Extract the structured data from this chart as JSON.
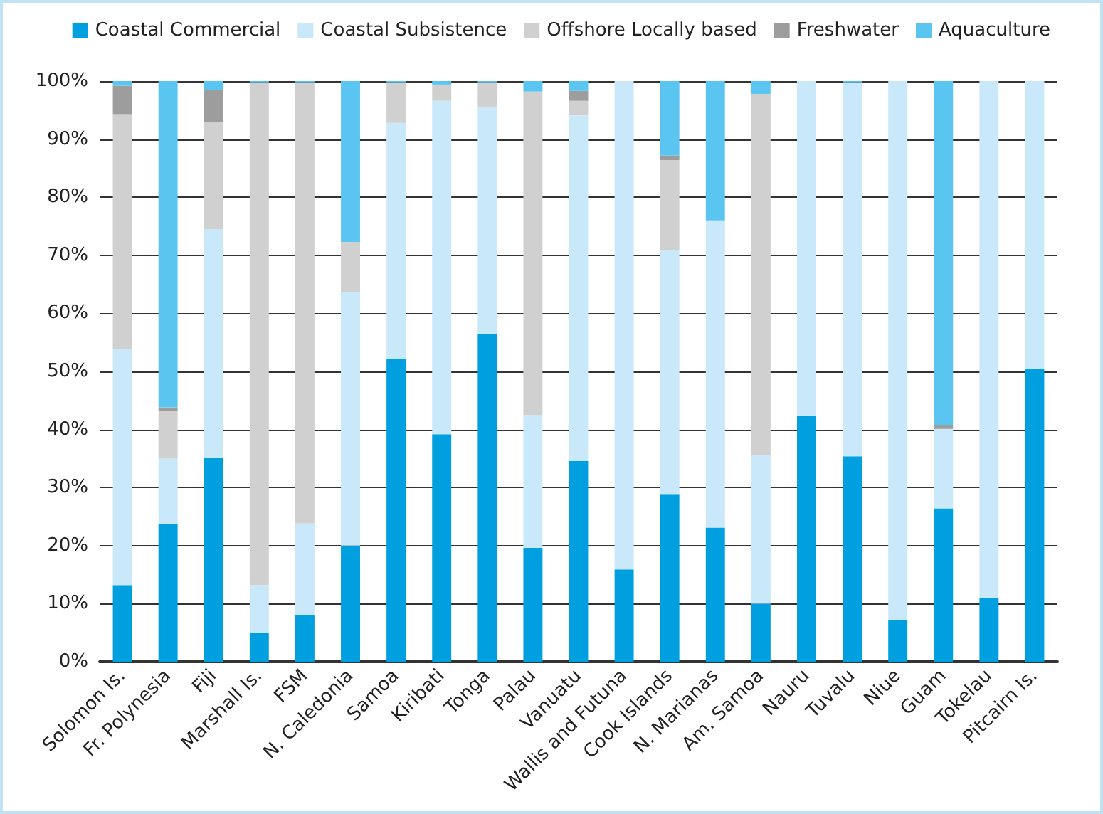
{
  "chart_data": {
    "type": "bar",
    "stacked": true,
    "categories": [
      "Solomon Is.",
      "Fr. Polynesia",
      "Fiji",
      "Marshall Is.",
      "FSM",
      "N. Caledonia",
      "Samoa",
      "Kiribati",
      "Tonga",
      "Palau",
      "Vanuatu",
      "Wallis and Futuna",
      "Cook Islands",
      "N. Marianas",
      "Am. Samoa",
      "Nauru",
      "Tuvalu",
      "Niue",
      "Guam",
      "Tokelau",
      "Pitcairn Is."
    ],
    "series": [
      {
        "name": "Coastal Commercial",
        "color": "#009fe0",
        "values": [
          13.2,
          23.7,
          35.2,
          5,
          8,
          20,
          52.1,
          39.2,
          56.4,
          19.6,
          34.6,
          15.9,
          28.9,
          23.1,
          10,
          42.4,
          35.4,
          7.1,
          26.4,
          11,
          50.5
        ]
      },
      {
        "name": "Coastal Subsistence",
        "color": "#c9e8f9",
        "values": [
          40.6,
          11.3,
          39.3,
          8.2,
          15.8,
          43.6,
          40.7,
          57.4,
          39.2,
          22.9,
          59.5,
          84.1,
          42,
          52.9,
          25.6,
          57.6,
          64.4,
          92.9,
          13.7,
          89,
          49.5
        ]
      },
      {
        "name": "Offshore Locally based",
        "color": "#d0d0d0",
        "values": [
          40.5,
          8.2,
          18.5,
          86.6,
          76,
          8.7,
          7,
          2.8,
          4.2,
          55.7,
          2.5,
          0,
          15.5,
          0,
          62.2,
          0,
          0,
          0,
          0,
          0,
          0
        ]
      },
      {
        "name": "Freshwater",
        "color": "#9d9d9d",
        "values": [
          4.9,
          0.6,
          5.5,
          0,
          0,
          0,
          0,
          0,
          0,
          0,
          1.7,
          0,
          0.8,
          0,
          0,
          0,
          0,
          0,
          0.7,
          0,
          0
        ]
      },
      {
        "name": "Aquaculture",
        "color": "#5bc5f2",
        "values": [
          0.8,
          56.2,
          1.5,
          0.2,
          0.2,
          27.7,
          0.2,
          0.6,
          0.2,
          1.8,
          1.7,
          0,
          12.8,
          24,
          2.2,
          0,
          0.2,
          0,
          59.2,
          0,
          0
        ]
      }
    ],
    "ylim": [
      0,
      100
    ],
    "yticks": [
      {
        "value": 0,
        "label": "0%"
      },
      {
        "value": 10,
        "label": "10%"
      },
      {
        "value": 20,
        "label": "20%"
      },
      {
        "value": 30,
        "label": "30%"
      },
      {
        "value": 40,
        "label": "40%"
      },
      {
        "value": 50,
        "label": "50%"
      },
      {
        "value": 60,
        "label": "60%"
      },
      {
        "value": 70,
        "label": "70%"
      },
      {
        "value": 80,
        "label": "80%"
      },
      {
        "value": 90,
        "label": "90%"
      },
      {
        "value": 100,
        "label": "100%"
      }
    ],
    "grid": "y",
    "legend": "top right"
  }
}
